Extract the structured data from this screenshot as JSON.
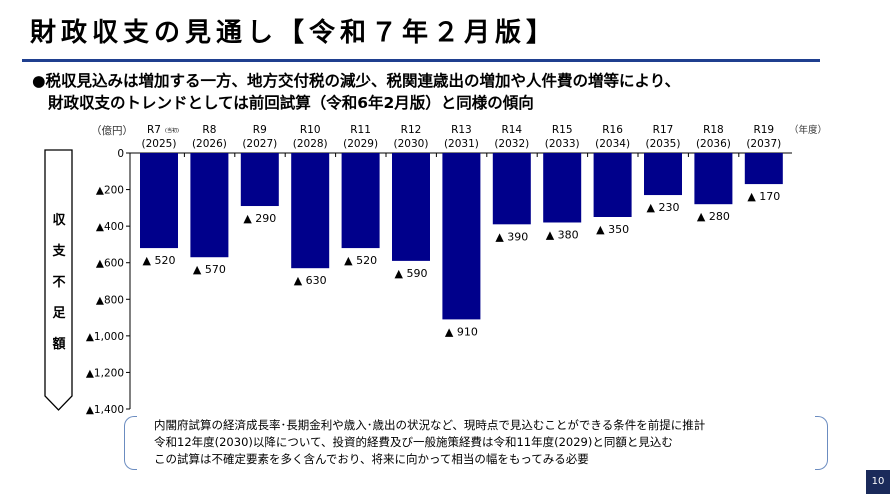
{
  "title": "財政収支の見通し【令和７年２月版】",
  "bullet": {
    "line1": "●税収見込みは増加する一方、地方交付税の減少、税関連歳出の増加や人件費の増等により、",
    "line2": "財政収支のトレンドとしては前回試算（令和6年2月版）と同様の傾向"
  },
  "side_label": [
    "収",
    "支",
    "不",
    "足",
    "額"
  ],
  "note": [
    "内閣府試算の経済成長率･長期金利や歳入･歳出の状況など、現時点で見込むことができる条件を前提に推計",
    "令和12年度(2030)以降について、投資的経費及び一般施策経費は令和11年度(2029)と同額と見込む",
    "この試算は不確定要素を多く含んでおり、将来に向かって相当の幅をもってみる必要"
  ],
  "page_number": "10",
  "chart_data": {
    "type": "bar",
    "ylabel": "（億円）",
    "xlabel": "（年度）",
    "categories": [
      "R7",
      "R8",
      "R9",
      "R10",
      "R11",
      "R12",
      "R13",
      "R14",
      "R15",
      "R16",
      "R17",
      "R18",
      "R19"
    ],
    "category_note": "(当初)",
    "years": [
      "(2025)",
      "(2026)",
      "(2027)",
      "(2028)",
      "(2029)",
      "(2030)",
      "(2031)",
      "(2032)",
      "(2033)",
      "(2034)",
      "(2035)",
      "(2036)",
      "(2037)"
    ],
    "values": [
      -520,
      -570,
      -290,
      -630,
      -520,
      -590,
      -910,
      -390,
      -380,
      -350,
      -230,
      -280,
      -170
    ],
    "data_labels": [
      "▲ 520",
      "▲ 570",
      "▲ 290",
      "▲ 630",
      "▲ 520",
      "▲ 590",
      "▲ 910",
      "▲ 390",
      "▲ 380",
      "▲ 350",
      "▲ 230",
      "▲ 280",
      "▲ 170"
    ],
    "yticks": [
      0,
      -200,
      -400,
      -600,
      -800,
      -1000,
      -1200,
      -1400
    ],
    "ytick_labels": [
      "0",
      "▲200",
      "▲400",
      "▲600",
      "▲800",
      "▲1,000",
      "▲1,200",
      "▲1,400"
    ],
    "ylim": [
      -1400,
      0
    ],
    "bar_color": "#00008b",
    "grid": false
  }
}
